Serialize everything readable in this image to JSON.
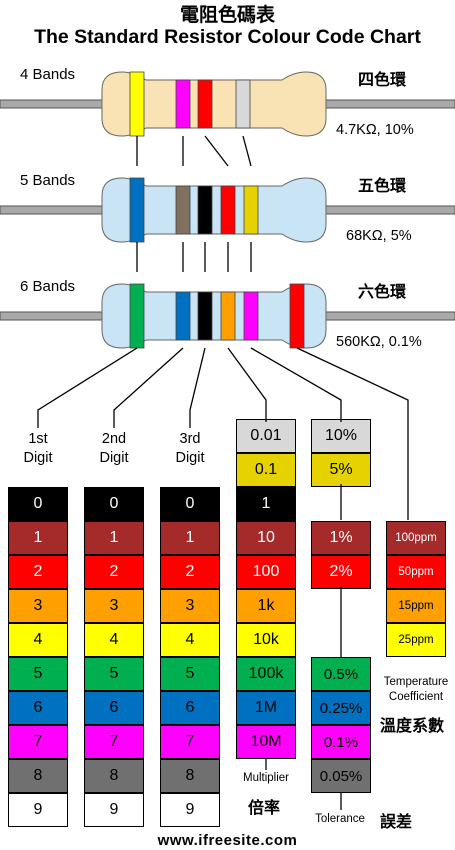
{
  "title_cn": "電阻色碼表",
  "title_en": "The Standard Resistor Colour Code Chart",
  "resistors": [
    {
      "label": "4 Bands",
      "cn": "四色環",
      "value": "4.7KΩ, 10%",
      "body_color": "#f9e3b4",
      "bands": [
        {
          "color": "#ffff00",
          "meaning": "digit"
        },
        {
          "color": "#ff00ff",
          "meaning": "digit"
        },
        {
          "color": "#ff0000",
          "meaning": "multiplier"
        },
        {
          "color": "#d8d8d8",
          "meaning": "tolerance"
        }
      ]
    },
    {
      "label": "5 Bands",
      "cn": "五色環",
      "value": "68KΩ, 5%",
      "body_color": "#c9e4f5",
      "bands": [
        {
          "color": "#0070c0",
          "meaning": "digit"
        },
        {
          "color": "#807060",
          "meaning": "digit"
        },
        {
          "color": "#000000",
          "meaning": "digit"
        },
        {
          "color": "#ff0000",
          "meaning": "multiplier"
        },
        {
          "color": "#e6d200",
          "meaning": "tolerance"
        }
      ]
    },
    {
      "label": "6 Bands",
      "cn": "六色環",
      "value": "560KΩ, 0.1%",
      "body_color": "#c9e4f5",
      "bands": [
        {
          "color": "#00b050",
          "meaning": "digit"
        },
        {
          "color": "#0070c0",
          "meaning": "digit"
        },
        {
          "color": "#000000",
          "meaning": "digit"
        },
        {
          "color": "#ffa000",
          "meaning": "multiplier"
        },
        {
          "color": "#ff00ff",
          "meaning": "tolerance"
        },
        {
          "color": "#ff0000",
          "meaning": "temperature"
        }
      ]
    }
  ],
  "columns": {
    "digit1": {
      "header": [
        "1st",
        "Digit"
      ]
    },
    "digit2": {
      "header": [
        "2nd",
        "Digit"
      ]
    },
    "digit3": {
      "header": [
        "3rd",
        "Digit"
      ]
    }
  },
  "digits": [
    {
      "label": "0",
      "color": "#000000",
      "text": "#ffffff"
    },
    {
      "label": "1",
      "color": "#a52a2a",
      "text": "#ffffff"
    },
    {
      "label": "2",
      "color": "#ff0000",
      "text": "#ffffff"
    },
    {
      "label": "3",
      "color": "#ffa000",
      "text": "#000000"
    },
    {
      "label": "4",
      "color": "#ffff00",
      "text": "#000000"
    },
    {
      "label": "5",
      "color": "#00b050",
      "text": "#000000"
    },
    {
      "label": "6",
      "color": "#0070c0",
      "text": "#000000"
    },
    {
      "label": "7",
      "color": "#ff00ff",
      "text": "#000000"
    },
    {
      "label": "8",
      "color": "#707070",
      "text": "#000000"
    },
    {
      "label": "9",
      "color": "#ffffff",
      "text": "#000000"
    }
  ],
  "multiplier": {
    "caption_en": "Multiplier",
    "caption_cn": "倍率",
    "cells": [
      {
        "label": "0.01",
        "color": "#d8d8d8",
        "text": "#000000"
      },
      {
        "label": "0.1",
        "color": "#e6d200",
        "text": "#000000"
      },
      {
        "label": "1",
        "color": "#000000",
        "text": "#ffffff"
      },
      {
        "label": "10",
        "color": "#a52a2a",
        "text": "#ffffff"
      },
      {
        "label": "100",
        "color": "#ff0000",
        "text": "#ffffff"
      },
      {
        "label": "1k",
        "color": "#ffa000",
        "text": "#000000"
      },
      {
        "label": "10k",
        "color": "#ffff00",
        "text": "#000000"
      },
      {
        "label": "100k",
        "color": "#00b050",
        "text": "#000000"
      },
      {
        "label": "1M",
        "color": "#0070c0",
        "text": "#000000"
      },
      {
        "label": "10M",
        "color": "#ff00ff",
        "text": "#000000"
      }
    ]
  },
  "tolerance": {
    "caption_en": "Tolerance",
    "caption_cn": "誤差",
    "top": [
      {
        "label": "10%",
        "color": "#d8d8d8",
        "text": "#000000"
      },
      {
        "label": "5%",
        "color": "#e6d200",
        "text": "#000000"
      }
    ],
    "middle": [
      {
        "label": "1%",
        "color": "#a52a2a",
        "text": "#ffffff"
      },
      {
        "label": "2%",
        "color": "#ff0000",
        "text": "#ffffff"
      }
    ],
    "bottom": [
      {
        "label": "0.5%",
        "color": "#00b050",
        "text": "#000000"
      },
      {
        "label": "0.25%",
        "color": "#0070c0",
        "text": "#000000"
      },
      {
        "label": "0.1%",
        "color": "#ff00ff",
        "text": "#000000"
      },
      {
        "label": "0.05%",
        "color": "#707070",
        "text": "#000000"
      }
    ]
  },
  "temperature": {
    "caption_en": [
      "Temperature",
      "Coefficient"
    ],
    "caption_cn": "溫度系數",
    "cells": [
      {
        "label": "100ppm",
        "color": "#a52a2a",
        "text": "#ffffff"
      },
      {
        "label": "50ppm",
        "color": "#ff0000",
        "text": "#ffffff"
      },
      {
        "label": "15ppm",
        "color": "#ffa000",
        "text": "#000000"
      },
      {
        "label": "25ppm",
        "color": "#ffff00",
        "text": "#000000"
      }
    ]
  },
  "website": "www.ifreesite.com"
}
